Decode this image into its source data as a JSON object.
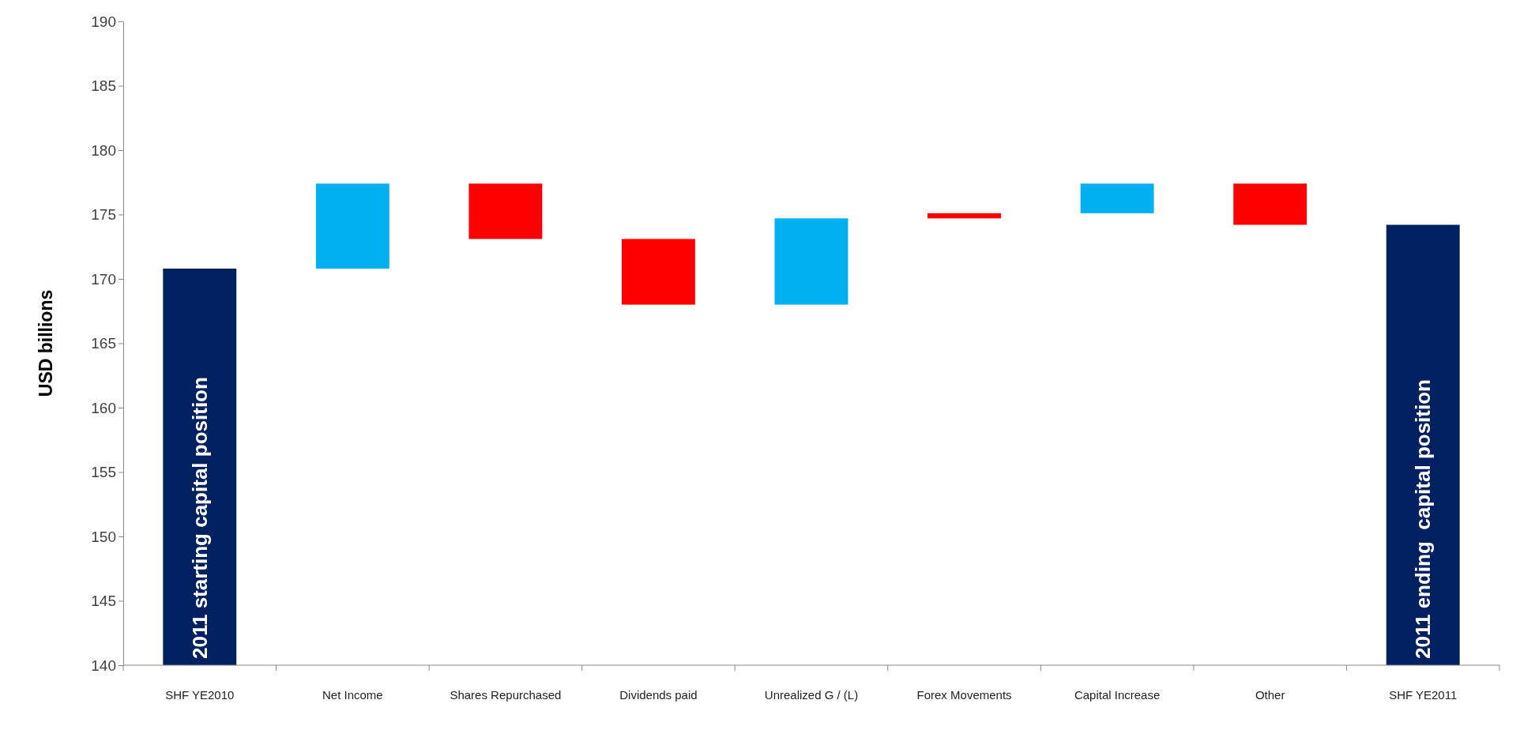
{
  "chart_data": {
    "type": "bar",
    "ylabel": "USD billions",
    "categories": [
      "SHF YE2010",
      "Net Income",
      "Shares Repurchased",
      "Dividends paid",
      "Unrealized G / (L)",
      "Forex Movements",
      "Capital Increase",
      "Other",
      "SHF YE2011"
    ],
    "base": [
      140,
      170.8,
      177.4,
      173.1,
      168.0,
      175.1,
      175.1,
      177.4,
      140
    ],
    "values": [
      30.8,
      6.6,
      -4.3,
      -5.1,
      6.7,
      -0.4,
      2.3,
      -3.2,
      34.2
    ],
    "colors": [
      "#002060",
      "#00b0f0",
      "#ff0000",
      "#ff0000",
      "#00b0f0",
      "#ff0000",
      "#00b0f0",
      "#ff0000",
      "#002060"
    ],
    "ylim": [
      140,
      190
    ],
    "yticks": [
      140,
      145,
      150,
      155,
      160,
      165,
      170,
      175,
      180,
      185,
      190
    ],
    "grid": false,
    "annotations": [
      "2011 starting capital position",
      "2011 ending  capital position"
    ]
  }
}
